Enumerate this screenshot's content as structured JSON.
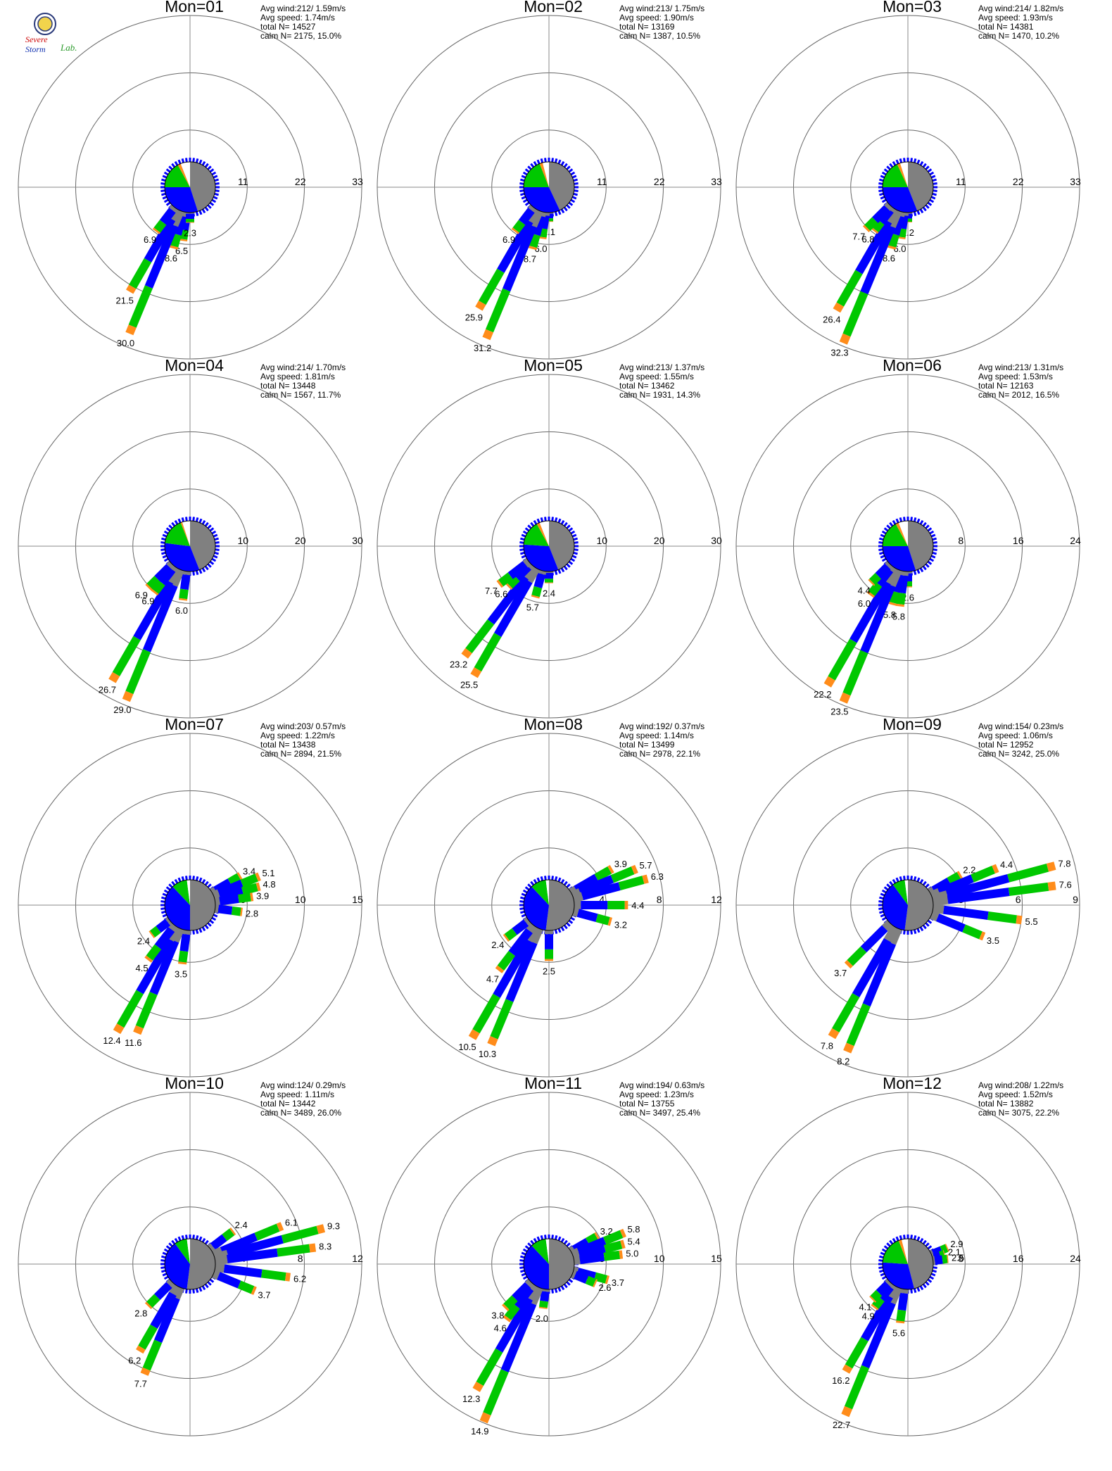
{
  "logo": {
    "name": "Severe Storm Lab logo",
    "text_line1": "Severe",
    "text_line2": "Storm",
    "text_line3": "Lab."
  },
  "colors": {
    "ring": "#666666",
    "axis": "#8a8a8a",
    "bin1": "#808080",
    "bin2": "#0000ff",
    "bin3": "#00c800",
    "bin4": "#ff8c1a",
    "bin5": "#ff0000",
    "calm_gray": "#808080",
    "calm_blue": "#0000ff",
    "calm_green": "#00c800",
    "calm_orange": "#ff8c1a",
    "calm_white": "#ffffff"
  },
  "chart_data": [
    {
      "type": "wind-rose",
      "title": "Mon=01",
      "stats": [
        "Avg wind:212/ 1.59m/s",
        "Avg speed: 1.74m/s",
        "total N=      14527",
        "calm N=   2175,  15.0%"
      ],
      "ring_labels": [
        "11",
        "22",
        "33"
      ],
      "r_max": 33,
      "petals": [
        {
          "dir": 187.5,
          "value": 6.5
        },
        {
          "dir": 195,
          "value": 8.6
        },
        {
          "dir": 202.5,
          "value": 30.0
        },
        {
          "dir": 210,
          "value": 21.5
        },
        {
          "dir": 217.5,
          "value": 6.9
        },
        {
          "dir": 180,
          "value": 2.3
        }
      ],
      "calm_slices": [
        0.45,
        0.3,
        0.17,
        0.02,
        0.06
      ]
    },
    {
      "type": "wind-rose",
      "title": "Mon=02",
      "stats": [
        "Avg wind:213/ 1.75m/s",
        "Avg speed: 1.90m/s",
        "total N=      13169",
        "calm N=   1387,  10.5%"
      ],
      "ring_labels": [
        "11",
        "22",
        "33"
      ],
      "r_max": 33,
      "petals": [
        {
          "dir": 180,
          "value": 2.1
        },
        {
          "dir": 187.5,
          "value": 6.0
        },
        {
          "dir": 195,
          "value": 8.7
        },
        {
          "dir": 202.5,
          "value": 31.2
        },
        {
          "dir": 210,
          "value": 25.9
        },
        {
          "dir": 217.5,
          "value": 6.9
        }
      ],
      "calm_slices": [
        0.43,
        0.32,
        0.19,
        0.02,
        0.04
      ]
    },
    {
      "type": "wind-rose",
      "title": "Mon=03",
      "stats": [
        "Avg wind:214/ 1.82m/s",
        "Avg speed: 1.93m/s",
        "total N=      14381",
        "calm N=   1470,  10.2%"
      ],
      "ring_labels": [
        "11",
        "22",
        "33"
      ],
      "r_max": 33,
      "petals": [
        {
          "dir": 180,
          "value": 2.2
        },
        {
          "dir": 187.5,
          "value": 6.0
        },
        {
          "dir": 195,
          "value": 8.6
        },
        {
          "dir": 202.5,
          "value": 32.3
        },
        {
          "dir": 210,
          "value": 26.4
        },
        {
          "dir": 217.5,
          "value": 6.8
        },
        {
          "dir": 225,
          "value": 7.7
        }
      ],
      "calm_slices": [
        0.44,
        0.31,
        0.18,
        0.02,
        0.05
      ]
    },
    {
      "type": "wind-rose",
      "title": "Mon=04",
      "stats": [
        "Avg wind:214/ 1.70m/s",
        "Avg speed: 1.81m/s",
        "total N=      13448",
        "calm N=   1567,  11.7%"
      ],
      "ring_labels": [
        "10",
        "20",
        "30"
      ],
      "r_max": 30,
      "petals": [
        {
          "dir": 187.5,
          "value": 6.0
        },
        {
          "dir": 202.5,
          "value": 29.0
        },
        {
          "dir": 210,
          "value": 26.7
        },
        {
          "dir": 217.5,
          "value": 6.9
        },
        {
          "dir": 225,
          "value": 6.9
        }
      ],
      "calm_slices": [
        0.44,
        0.33,
        0.17,
        0.01,
        0.05
      ]
    },
    {
      "type": "wind-rose",
      "title": "Mon=05",
      "stats": [
        "Avg wind:213/ 1.37m/s",
        "Avg speed: 1.55m/s",
        "total N=      13462",
        "calm N=   1931,  14.3%"
      ],
      "ring_labels": [
        "10",
        "20",
        "30"
      ],
      "r_max": 30,
      "petals": [
        {
          "dir": 180,
          "value": 2.4
        },
        {
          "dir": 195,
          "value": 5.7
        },
        {
          "dir": 210,
          "value": 25.5
        },
        {
          "dir": 217.5,
          "value": 23.2
        },
        {
          "dir": 225,
          "value": 6.6
        },
        {
          "dir": 232.5,
          "value": 7.7
        }
      ],
      "calm_slices": [
        0.44,
        0.32,
        0.16,
        0.02,
        0.06
      ]
    },
    {
      "type": "wind-rose",
      "title": "Mon=06",
      "stats": [
        "Avg wind:213/ 1.31m/s",
        "Avg speed: 1.53m/s",
        "total N=      12163",
        "calm N=   2012,  16.5%"
      ],
      "ring_labels": [
        "8",
        "16",
        "24"
      ],
      "r_max": 24,
      "petals": [
        {
          "dir": 180,
          "value": 2.6
        },
        {
          "dir": 187.5,
          "value": 5.8
        },
        {
          "dir": 195,
          "value": 5.8
        },
        {
          "dir": 202.5,
          "value": 23.5
        },
        {
          "dir": 210,
          "value": 22.2
        },
        {
          "dir": 217.5,
          "value": 6.0
        },
        {
          "dir": 225,
          "value": 4.4
        }
      ],
      "calm_slices": [
        0.45,
        0.3,
        0.17,
        0.02,
        0.06
      ]
    },
    {
      "type": "wind-rose",
      "title": "Mon=07",
      "stats": [
        "Avg wind:203/ 0.57m/s",
        "Avg speed: 1.22m/s",
        "total N=      13438",
        "calm N=   2894,  21.5%"
      ],
      "ring_labels": [
        "5",
        "10",
        "15"
      ],
      "r_max": 15,
      "petals": [
        {
          "dir": 60,
          "value": 3.4
        },
        {
          "dir": 67.5,
          "value": 5.1
        },
        {
          "dir": 75,
          "value": 4.8
        },
        {
          "dir": 82.5,
          "value": 3.9
        },
        {
          "dir": 97.5,
          "value": 2.8
        },
        {
          "dir": 187.5,
          "value": 3.5
        },
        {
          "dir": 202.5,
          "value": 11.6
        },
        {
          "dir": 210,
          "value": 12.4
        },
        {
          "dir": 217.5,
          "value": 4.5
        },
        {
          "dir": 232.5,
          "value": 2.4
        }
      ],
      "calm_slices": [
        0.5,
        0.38,
        0.1,
        0.0,
        0.02
      ]
    },
    {
      "type": "wind-rose",
      "title": "Mon=08",
      "stats": [
        "Avg wind:192/ 0.37m/s",
        "Avg speed: 1.14m/s",
        "total N=      13499",
        "calm N=   2978,  22.1%"
      ],
      "ring_labels": [
        "4",
        "8",
        "12"
      ],
      "r_max": 12,
      "petals": [
        {
          "dir": 60,
          "value": 3.9
        },
        {
          "dir": 67.5,
          "value": 5.7
        },
        {
          "dir": 75,
          "value": 6.3
        },
        {
          "dir": 90,
          "value": 4.4
        },
        {
          "dir": 105,
          "value": 3.2
        },
        {
          "dir": 180,
          "value": 2.5
        },
        {
          "dir": 202.5,
          "value": 10.3
        },
        {
          "dir": 210,
          "value": 10.5
        },
        {
          "dir": 217.5,
          "value": 4.7
        },
        {
          "dir": 232.5,
          "value": 2.4
        }
      ],
      "calm_slices": [
        0.52,
        0.36,
        0.1,
        0.0,
        0.02
      ]
    },
    {
      "type": "wind-rose",
      "title": "Mon=09",
      "stats": [
        "Avg wind:154/ 0.23m/s",
        "Avg speed: 1.06m/s",
        "total N=      12952",
        "calm N=   3242,  25.0%"
      ],
      "ring_labels": [
        "3",
        "6",
        "9"
      ],
      "r_max": 9,
      "petals": [
        {
          "dir": 60,
          "value": 2.2
        },
        {
          "dir": 67.5,
          "value": 4.4
        },
        {
          "dir": 75,
          "value": 7.8
        },
        {
          "dir": 82.5,
          "value": 7.6
        },
        {
          "dir": 97.5,
          "value": 5.5
        },
        {
          "dir": 112.5,
          "value": 3.5
        },
        {
          "dir": 202.5,
          "value": 8.2
        },
        {
          "dir": 210,
          "value": 7.8
        },
        {
          "dir": 225,
          "value": 3.7
        }
      ],
      "calm_slices": [
        0.52,
        0.38,
        0.08,
        0.0,
        0.02
      ]
    },
    {
      "type": "wind-rose",
      "title": "Mon=10",
      "stats": [
        "Avg wind:124/ 0.29m/s",
        "Avg speed: 1.11m/s",
        "total N=      13442",
        "calm N=   3489,  26.0%"
      ],
      "ring_labels": [
        "4",
        "8",
        "12"
      ],
      "r_max": 12,
      "petals": [
        {
          "dir": 52.5,
          "value": 2.4
        },
        {
          "dir": 67.5,
          "value": 6.1
        },
        {
          "dir": 75,
          "value": 9.3
        },
        {
          "dir": 82.5,
          "value": 8.3
        },
        {
          "dir": 97.5,
          "value": 6.2
        },
        {
          "dir": 112.5,
          "value": 3.7
        },
        {
          "dir": 202.5,
          "value": 7.7
        },
        {
          "dir": 210,
          "value": 6.2
        },
        {
          "dir": 225,
          "value": 2.8
        }
      ],
      "calm_slices": [
        0.52,
        0.38,
        0.08,
        0.0,
        0.02
      ]
    },
    {
      "type": "wind-rose",
      "title": "Mon=11",
      "stats": [
        "Avg wind:194/ 0.63m/s",
        "Avg speed: 1.23m/s",
        "total N=      13755",
        "calm N=   3497,  25.4%"
      ],
      "ring_labels": [
        "5",
        "10",
        "15"
      ],
      "r_max": 15,
      "petals": [
        {
          "dir": 60,
          "value": 3.2
        },
        {
          "dir": 67.5,
          "value": 5.8
        },
        {
          "dir": 75,
          "value": 5.4
        },
        {
          "dir": 82.5,
          "value": 5.0
        },
        {
          "dir": 105,
          "value": 3.7
        },
        {
          "dir": 112.5,
          "value": 2.6
        },
        {
          "dir": 187.5,
          "value": 2.0
        },
        {
          "dir": 202.5,
          "value": 14.9
        },
        {
          "dir": 210,
          "value": 12.3
        },
        {
          "dir": 217.5,
          "value": 4.6
        },
        {
          "dir": 225,
          "value": 3.8
        }
      ],
      "calm_slices": [
        0.5,
        0.38,
        0.1,
        0.0,
        0.02
      ]
    },
    {
      "type": "wind-rose",
      "title": "Mon=12",
      "stats": [
        "Avg wind:208/ 1.22m/s",
        "Avg speed: 1.52m/s",
        "total N=      13882",
        "calm N=   3075,  22.2%"
      ],
      "ring_labels": [
        "8",
        "16",
        "24"
      ],
      "r_max": 24,
      "petals": [
        {
          "dir": 67.5,
          "value": 2.9
        },
        {
          "dir": 75,
          "value": 2.1
        },
        {
          "dir": 82.5,
          "value": 2.5
        },
        {
          "dir": 187.5,
          "value": 5.6
        },
        {
          "dir": 202.5,
          "value": 22.7
        },
        {
          "dir": 210,
          "value": 16.2
        },
        {
          "dir": 217.5,
          "value": 4.9
        },
        {
          "dir": 225,
          "value": 4.1
        }
      ],
      "calm_slices": [
        0.46,
        0.3,
        0.18,
        0.02,
        0.04
      ]
    }
  ]
}
